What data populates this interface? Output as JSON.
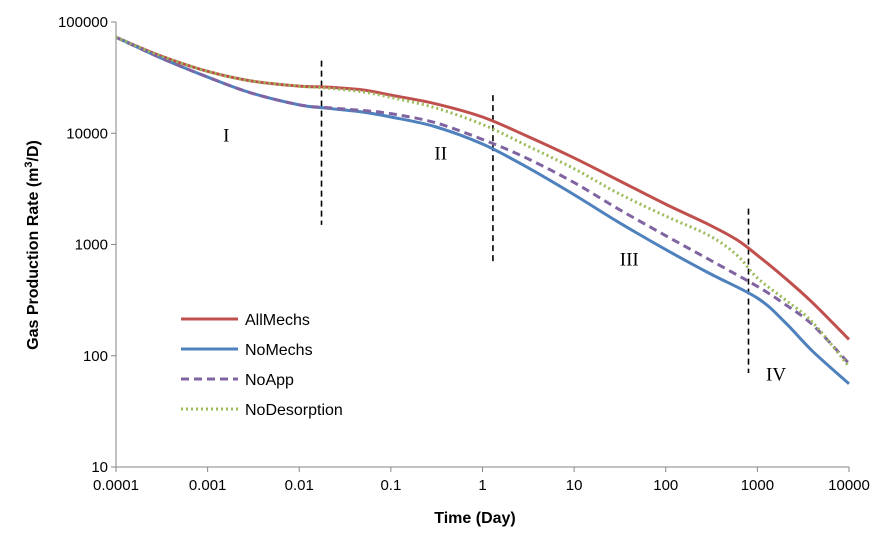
{
  "chart_data": {
    "type": "line",
    "xlabel": "Time (Day)",
    "ylabel_main": "Gas Production Rate (m",
    "ylabel_sup": "3",
    "ylabel_tail": "/D)",
    "x_scale": "log",
    "y_scale": "log",
    "xlim": [
      0.0001,
      10000
    ],
    "ylim": [
      10,
      100000
    ],
    "x_ticks": [
      {
        "value": 0.0001,
        "label": "0.0001"
      },
      {
        "value": 0.001,
        "label": "0.001"
      },
      {
        "value": 0.01,
        "label": "0.01"
      },
      {
        "value": 0.1,
        "label": "0.1"
      },
      {
        "value": 1,
        "label": "1"
      },
      {
        "value": 10,
        "label": "10"
      },
      {
        "value": 100,
        "label": "100"
      },
      {
        "value": 1000,
        "label": "1000"
      },
      {
        "value": 10000,
        "label": "10000"
      }
    ],
    "y_ticks": [
      {
        "value": 10,
        "label": "10"
      },
      {
        "value": 100,
        "label": "100"
      },
      {
        "value": 1000,
        "label": "1000"
      },
      {
        "value": 10000,
        "label": "10000"
      },
      {
        "value": 100000,
        "label": "100000"
      }
    ],
    "grid": false,
    "legend_position": "lower-left",
    "series": [
      {
        "name": "AllMechs",
        "color": "#C0504D",
        "dash": "solid",
        "points": [
          [
            0.0001,
            73000
          ],
          [
            0.0003,
            50000
          ],
          [
            0.001,
            36000
          ],
          [
            0.003,
            29500
          ],
          [
            0.01,
            26500
          ],
          [
            0.02,
            26000
          ],
          [
            0.05,
            24500
          ],
          [
            0.1,
            22000
          ],
          [
            0.3,
            18500
          ],
          [
            1,
            14000
          ],
          [
            3,
            9500
          ],
          [
            10,
            6000
          ],
          [
            30,
            3800
          ],
          [
            100,
            2300
          ],
          [
            300,
            1500
          ],
          [
            600,
            1100
          ],
          [
            1000,
            800
          ],
          [
            2000,
            500
          ],
          [
            4000,
            300
          ],
          [
            10000,
            140
          ]
        ]
      },
      {
        "name": "NoMechs",
        "color": "#4F81BD",
        "dash": "solid",
        "points": [
          [
            0.0001,
            73000
          ],
          [
            0.0003,
            48000
          ],
          [
            0.001,
            32000
          ],
          [
            0.003,
            23000
          ],
          [
            0.01,
            18000
          ],
          [
            0.02,
            16800
          ],
          [
            0.05,
            15500
          ],
          [
            0.1,
            14000
          ],
          [
            0.3,
            11500
          ],
          [
            1,
            8000
          ],
          [
            3,
            5000
          ],
          [
            10,
            2800
          ],
          [
            30,
            1600
          ],
          [
            100,
            900
          ],
          [
            300,
            550
          ],
          [
            1000,
            330
          ],
          [
            2000,
            200
          ],
          [
            4000,
            110
          ],
          [
            10000,
            56
          ]
        ]
      },
      {
        "name": "NoApp",
        "color": "#8064A2",
        "dash": "dashed",
        "points": [
          [
            0.0001,
            73000
          ],
          [
            0.0003,
            48000
          ],
          [
            0.001,
            32000
          ],
          [
            0.003,
            23000
          ],
          [
            0.01,
            18000
          ],
          [
            0.02,
            17000
          ],
          [
            0.05,
            16000
          ],
          [
            0.1,
            15000
          ],
          [
            0.3,
            12500
          ],
          [
            1,
            8800
          ],
          [
            3,
            6000
          ],
          [
            10,
            3600
          ],
          [
            30,
            2100
          ],
          [
            100,
            1200
          ],
          [
            300,
            730
          ],
          [
            1000,
            420
          ],
          [
            2000,
            290
          ],
          [
            4000,
            190
          ],
          [
            10000,
            85
          ]
        ]
      },
      {
        "name": "NoDesorption",
        "color": "#9BBB59",
        "dash": "dotted",
        "points": [
          [
            0.0001,
            73000
          ],
          [
            0.0003,
            50000
          ],
          [
            0.001,
            36000
          ],
          [
            0.003,
            29500
          ],
          [
            0.01,
            26500
          ],
          [
            0.02,
            25500
          ],
          [
            0.05,
            23500
          ],
          [
            0.1,
            21000
          ],
          [
            0.3,
            17000
          ],
          [
            1,
            12000
          ],
          [
            3,
            7800
          ],
          [
            10,
            4800
          ],
          [
            30,
            2900
          ],
          [
            100,
            1800
          ],
          [
            300,
            1200
          ],
          [
            600,
            800
          ],
          [
            1000,
            500
          ],
          [
            2000,
            320
          ],
          [
            4000,
            200
          ],
          [
            10000,
            80
          ]
        ]
      }
    ],
    "boundaries": [
      {
        "x": 0.0175,
        "y_from": 1500,
        "y_to": 45000
      },
      {
        "x": 1.3,
        "y_from": 700,
        "y_to": 22000
      },
      {
        "x": 800,
        "y_from": 70,
        "y_to": 2100
      }
    ],
    "regions": [
      {
        "label": "I",
        "x": 0.0016,
        "y": 8400
      },
      {
        "label": "II",
        "x": 0.35,
        "y": 5800
      },
      {
        "label": "III",
        "x": 40,
        "y": 650
      },
      {
        "label": "IV",
        "x": 1600,
        "y": 60
      }
    ]
  }
}
